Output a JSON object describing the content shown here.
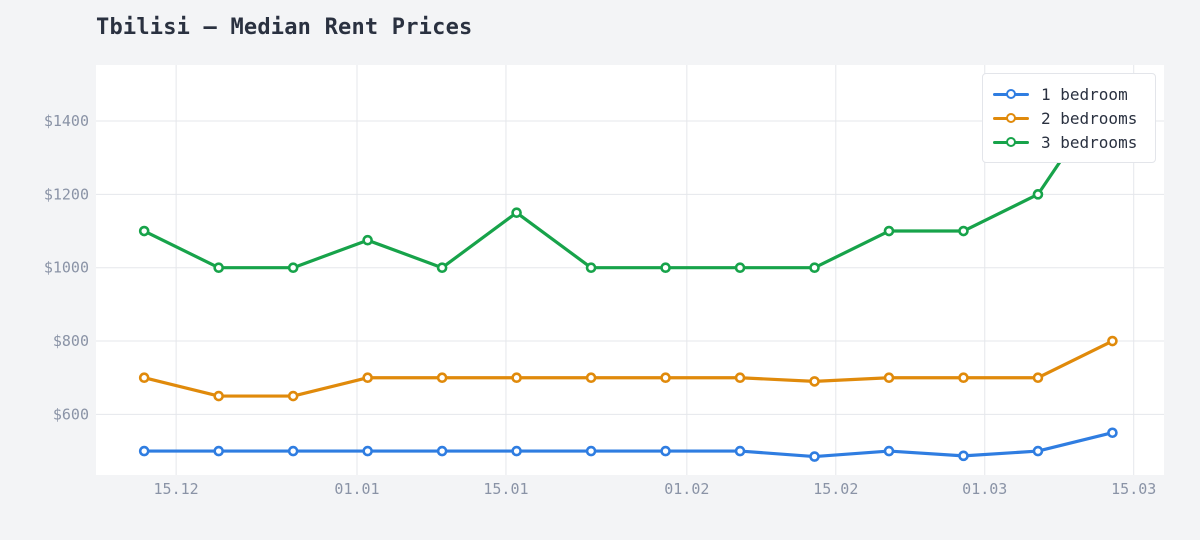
{
  "title": "Tbilisi — Median Rent Prices",
  "chart_data": {
    "type": "line",
    "title": "Tbilisi — Median Rent Prices",
    "xlabel": "",
    "ylabel": "",
    "x": [
      "12.12",
      "19.12",
      "26.12",
      "02.01",
      "09.01",
      "16.01",
      "23.01",
      "30.01",
      "06.02",
      "13.02",
      "20.02",
      "27.02",
      "06.03",
      "13.03"
    ],
    "x_day_offsets": [
      -20,
      -13,
      -6,
      1,
      8,
      15,
      22,
      29,
      36,
      43,
      50,
      57,
      64,
      71
    ],
    "x_ticks": [
      {
        "label": "15.12",
        "day": -17
      },
      {
        "label": "01.01",
        "day": 0
      },
      {
        "label": "15.01",
        "day": 14
      },
      {
        "label": "01.02",
        "day": 31
      },
      {
        "label": "15.02",
        "day": 45
      },
      {
        "label": "01.03",
        "day": 59
      },
      {
        "label": "15.03",
        "day": 73
      }
    ],
    "y_ticks": [
      600,
      800,
      1000,
      1200,
      1400
    ],
    "y_tick_prefix": "$",
    "ylim": [
      435,
      1553
    ],
    "grid": true,
    "legend_position": "top-right",
    "series": [
      {
        "name": "1 bedroom",
        "color": "#2f7de1",
        "values": [
          500,
          500,
          500,
          500,
          500,
          500,
          500,
          500,
          500,
          485,
          500,
          487,
          500,
          550
        ]
      },
      {
        "name": "2 bedrooms",
        "color": "#e08a0b",
        "values": [
          700,
          650,
          650,
          700,
          700,
          700,
          700,
          700,
          700,
          690,
          700,
          700,
          700,
          800
        ]
      },
      {
        "name": "3 bedrooms",
        "color": "#17a34a",
        "values": [
          1100,
          1000,
          1000,
          1075,
          1000,
          1150,
          1000,
          1000,
          1000,
          1000,
          1100,
          1100,
          1200,
          1500
        ]
      }
    ]
  }
}
